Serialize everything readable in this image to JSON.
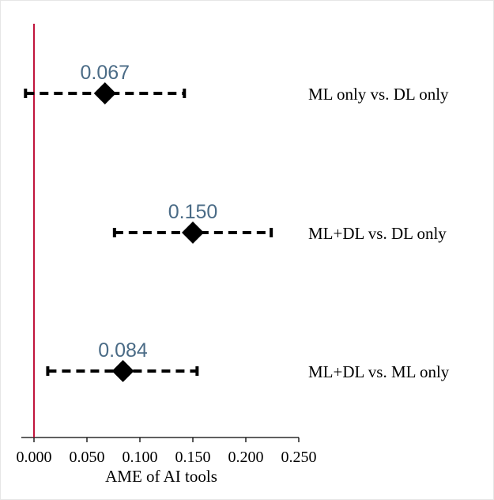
{
  "chart_data": {
    "type": "scatter",
    "subtype": "coefficient plot with confidence intervals",
    "title": "",
    "xlabel": "AME of AI tools",
    "ylabel": "",
    "xlim": [
      -0.012,
      0.25
    ],
    "xticks": [
      0.0,
      0.05,
      0.1,
      0.15,
      0.2,
      0.25
    ],
    "xtick_labels": [
      "0.000",
      "0.050",
      "0.100",
      "0.150",
      "0.200",
      "0.250"
    ],
    "reference_line": {
      "x": 0.0,
      "color": "#c0143c"
    },
    "grid": false,
    "marker": "diamond",
    "marker_color": "#000000",
    "ci_style": "dashed",
    "value_label_color": "#4a6b86",
    "points": [
      {
        "label": "ML only vs. DL only",
        "estimate": 0.067,
        "value_label": "0.067",
        "ci_low": -0.008,
        "ci_high": 0.142
      },
      {
        "label": "ML+DL vs. DL only",
        "estimate": 0.15,
        "value_label": "0.150",
        "ci_low": 0.076,
        "ci_high": 0.224
      },
      {
        "label": "ML+DL vs. ML only",
        "estimate": 0.084,
        "value_label": "0.084",
        "ci_low": 0.013,
        "ci_high": 0.154
      }
    ]
  }
}
